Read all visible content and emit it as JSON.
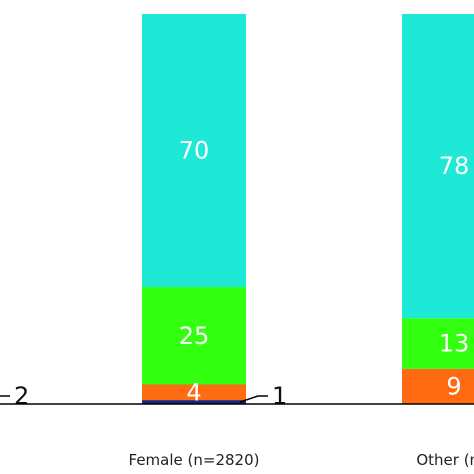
{
  "chart_data": {
    "type": "bar",
    "stacked": true,
    "categories": [
      "",
      "Female (n=2820)",
      "Other (n="
    ],
    "series": [
      {
        "color": "#1a237e",
        "values": [
          null,
          1,
          null
        ]
      },
      {
        "color": "#ff6a13",
        "values": [
          null,
          4,
          9
        ]
      },
      {
        "color": "#33ff11",
        "values": [
          null,
          25,
          13
        ]
      },
      {
        "color": "#1de9d6",
        "values": [
          null,
          70,
          78
        ]
      }
    ],
    "segment_labels": [
      [
        null,
        "",
        null
      ],
      [
        null,
        "4",
        "9"
      ],
      [
        null,
        "25",
        "13"
      ],
      [
        null,
        "70",
        "78"
      ]
    ],
    "callouts": [
      {
        "category_index": 0,
        "text": "2"
      },
      {
        "category_index": 1,
        "text": "1"
      }
    ],
    "ylim": [
      0,
      100
    ],
    "grid": false,
    "legend": "none"
  }
}
